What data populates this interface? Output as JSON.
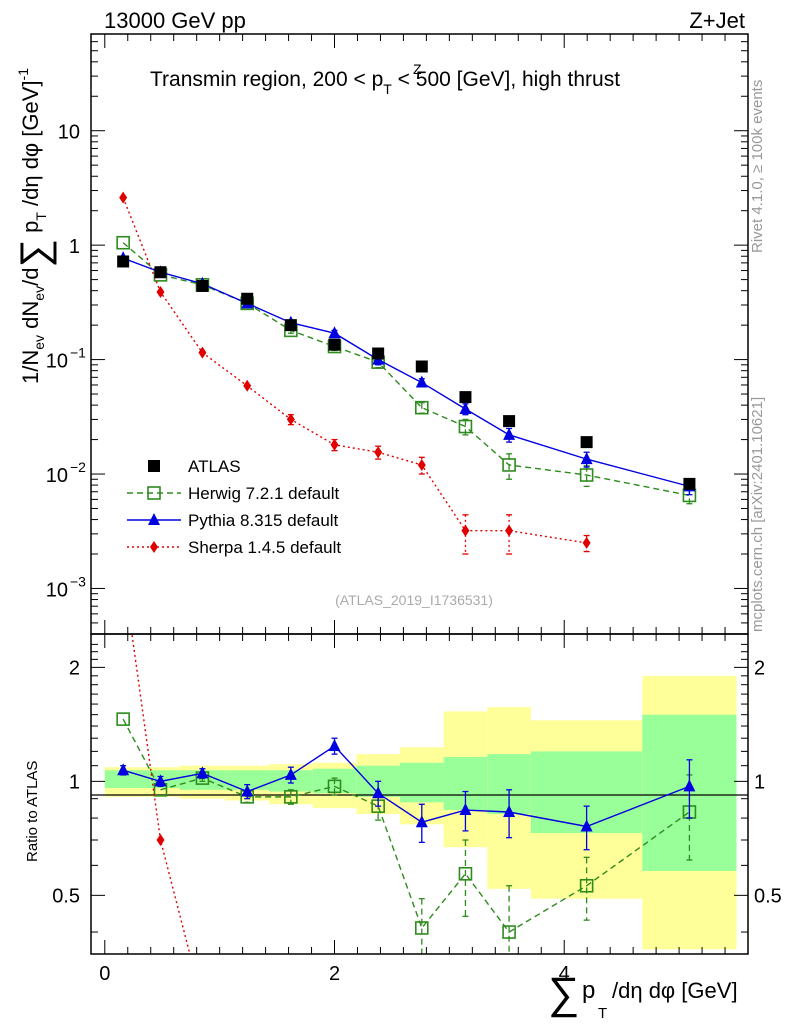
{
  "header": {
    "left": "13000 GeV pp",
    "right": "Z+Jet",
    "region_title_pre": "Transmin region, 200 < p",
    "region_title_sup": "Z",
    "region_title_sub": "T",
    "region_title_post": " < 500 [GeV], high thrust",
    "analysis_id": "(ATLAS_2019_I1736531)",
    "side_note_top": "Rivet 4.1.0, ≥ 100k events",
    "side_note_bottom": "mcplots.cern.ch [arXiv:2401.10621]"
  },
  "chart_data": {
    "type": "scatter",
    "ylabel": "1/N_ev dN_ev/d∑p_T/dη dφ [GeV]^-1",
    "ratio_ylabel": "Ratio to ATLAS",
    "xlabel": "∑ p_T /dη dφ [GeV]",
    "xlim": [
      -0.12,
      5.6
    ],
    "ylim_main": [
      0.0004,
      70
    ],
    "ylim_ratio": [
      0.35,
      2.45
    ],
    "x_ticks": [
      0,
      2,
      4
    ],
    "main_y_ticks": [
      {
        "value": 10,
        "label": "10",
        "exp": ""
      },
      {
        "value": 1,
        "label": "1",
        "exp": ""
      },
      {
        "value": 0.1,
        "label": "10",
        "exp": "−1"
      },
      {
        "value": 0.01,
        "label": "10",
        "exp": "−2"
      },
      {
        "value": 0.001,
        "label": "10",
        "exp": "−3"
      }
    ],
    "ratio_y_ticks": [
      {
        "value": 2,
        "label": "2"
      },
      {
        "value": 1,
        "label": "1"
      },
      {
        "value": 0.5,
        "label": "0.5"
      }
    ],
    "bins": [
      [
        0,
        0.32
      ],
      [
        0.32,
        0.65
      ],
      [
        0.65,
        1.05
      ],
      [
        1.05,
        1.43
      ],
      [
        1.43,
        1.81
      ],
      [
        1.81,
        2.19
      ],
      [
        2.19,
        2.57
      ],
      [
        2.57,
        2.95
      ],
      [
        2.95,
        3.33
      ],
      [
        3.33,
        3.71
      ],
      [
        3.71,
        4.68
      ],
      [
        4.68,
        5.5
      ]
    ],
    "ratio_band_inner": [
      [
        0.96,
        1.07
      ],
      [
        0.96,
        1.07
      ],
      [
        0.95,
        1.07
      ],
      [
        0.95,
        1.07
      ],
      [
        0.94,
        1.07
      ],
      [
        0.93,
        1.08
      ],
      [
        0.91,
        1.1
      ],
      [
        0.88,
        1.12
      ],
      [
        0.84,
        1.16
      ],
      [
        0.82,
        1.18
      ],
      [
        0.73,
        1.2
      ],
      [
        0.58,
        1.5
      ]
    ],
    "ratio_band_outer": [
      [
        0.91,
        1.09
      ],
      [
        0.91,
        1.09
      ],
      [
        0.9,
        1.1
      ],
      [
        0.89,
        1.1
      ],
      [
        0.87,
        1.11
      ],
      [
        0.85,
        1.12
      ],
      [
        0.82,
        1.18
      ],
      [
        0.77,
        1.23
      ],
      [
        0.67,
        1.53
      ],
      [
        0.52,
        1.57
      ],
      [
        0.49,
        1.45
      ],
      [
        0.36,
        1.9
      ]
    ],
    "series": [
      {
        "name": "ATLAS",
        "color": "#000000",
        "marker": "square",
        "x": [
          0.16,
          0.485,
          0.85,
          1.24,
          1.62,
          2.0,
          2.38,
          2.76,
          3.14,
          3.52,
          4.195,
          5.09
        ],
        "y": [
          0.72,
          0.58,
          0.44,
          0.34,
          0.2,
          0.135,
          0.113,
          0.087,
          0.047,
          0.029,
          0.019,
          0.0082
        ],
        "ratio": [
          1,
          1,
          1,
          1,
          1,
          1,
          1,
          1,
          1,
          1,
          1,
          1
        ]
      },
      {
        "name": "Herwig 7.2.1 default",
        "color": "#2e8b1e",
        "marker": "open-square",
        "dash": "dashed",
        "x": [
          0.16,
          0.485,
          0.85,
          1.24,
          1.62,
          2.0,
          2.38,
          2.76,
          3.14,
          3.52,
          4.195,
          5.09
        ],
        "y": [
          1.05,
          0.55,
          0.45,
          0.31,
          0.18,
          0.13,
          0.095,
          0.038,
          0.026,
          0.012,
          0.0098,
          0.0065
        ],
        "yerr": [
          0,
          0,
          0,
          0,
          0.01,
          0.01,
          0.01,
          0.004,
          0.004,
          0.003,
          0.002,
          0.001
        ],
        "ratio": [
          1.46,
          0.95,
          1.02,
          0.91,
          0.91,
          0.97,
          0.86,
          0.41,
          0.57,
          0.4,
          0.53,
          0.83
        ],
        "ratio_err": [
          0,
          0,
          0.02,
          0.03,
          0.04,
          0.05,
          0.07,
          0.08,
          0.13,
          0.13,
          0.1,
          0.21
        ]
      },
      {
        "name": "Pythia 8.315 default",
        "color": "#0000e0",
        "marker": "triangle",
        "x": [
          0.16,
          0.485,
          0.85,
          1.24,
          1.62,
          2.0,
          2.38,
          2.76,
          3.14,
          3.52,
          4.195,
          5.09
        ],
        "y": [
          0.77,
          0.58,
          0.46,
          0.31,
          0.21,
          0.17,
          0.1,
          0.063,
          0.037,
          0.022,
          0.0135,
          0.0078
        ],
        "yerr": [
          0,
          0,
          0,
          0,
          0.01,
          0.01,
          0.01,
          0.005,
          0.004,
          0.003,
          0.002,
          0.0012
        ],
        "ratio": [
          1.07,
          1.0,
          1.05,
          0.94,
          1.04,
          1.24,
          0.93,
          0.78,
          0.84,
          0.83,
          0.76,
          0.97
        ],
        "ratio_err": [
          0.03,
          0.03,
          0.03,
          0.04,
          0.05,
          0.06,
          0.07,
          0.09,
          0.1,
          0.12,
          0.1,
          0.17
        ]
      },
      {
        "name": "Sherpa 1.4.5 default",
        "color": "#e00000",
        "marker": "diamond",
        "dash": "dotted",
        "x": [
          0.16,
          0.485,
          0.85,
          1.24,
          1.62,
          2.0,
          2.38,
          2.76,
          3.14,
          3.52,
          4.195
        ],
        "y": [
          2.6,
          0.39,
          0.115,
          0.059,
          0.03,
          0.018,
          0.0155,
          0.012,
          0.0032,
          0.0032,
          0.0025
        ],
        "yerr": [
          0,
          0,
          0,
          0,
          0.003,
          0.002,
          0.002,
          0.002,
          0.0012,
          0.0012,
          0.0004
        ],
        "ratio_x": [
          0.16,
          0.485,
          0.85
        ],
        "ratio": [
          3.6,
          0.7,
          0.26
        ]
      }
    ]
  }
}
